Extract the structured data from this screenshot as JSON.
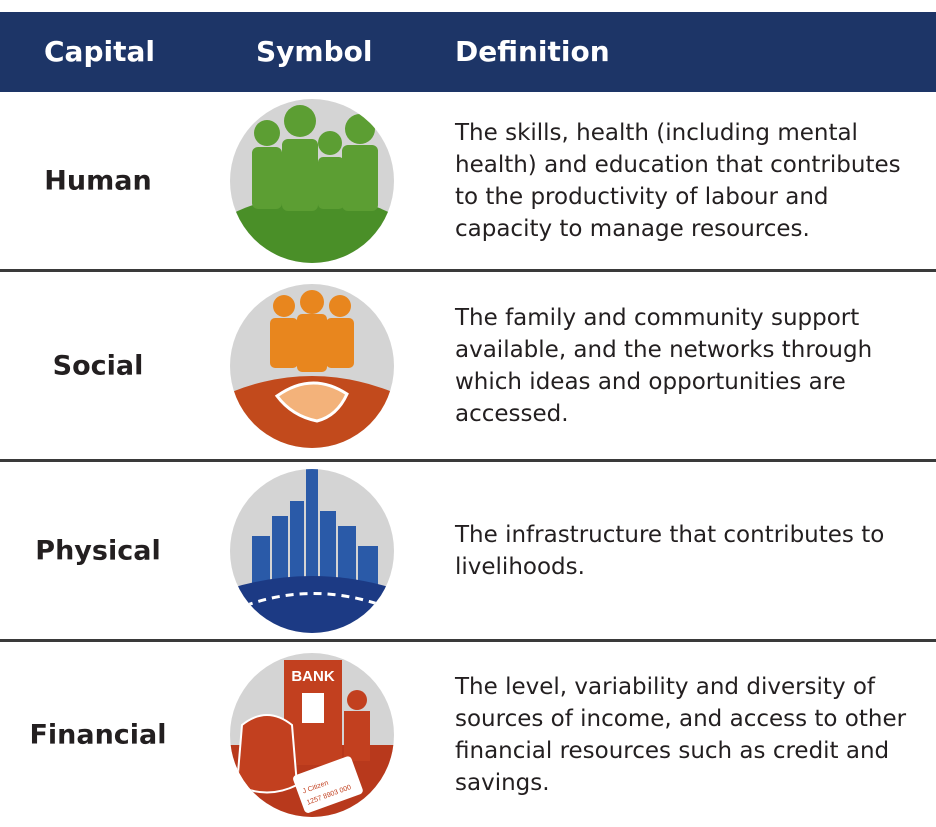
{
  "table": {
    "headers": [
      "Capital",
      "Symbol",
      "Definition"
    ],
    "rows": [
      {
        "capital": "Human",
        "definition": "The skills, health (including mental health) and education that contributes to the productivity of labour and capacity to manage resources."
      },
      {
        "capital": "Social",
        "definition": "The family and community support available, and the networks through which ideas and opportunities are accessed."
      },
      {
        "capital": "Physical",
        "definition": "The infrastructure that contributes to livelihoods."
      },
      {
        "capital": "Financial",
        "definition": "The level, variability and diversity of sources of income, and access to other financial resources such as credit and savings."
      }
    ]
  },
  "icons": {
    "financial": {
      "bank": "BANK",
      "card_name": "J Citizen",
      "card_number": "1257 8903 000"
    }
  }
}
